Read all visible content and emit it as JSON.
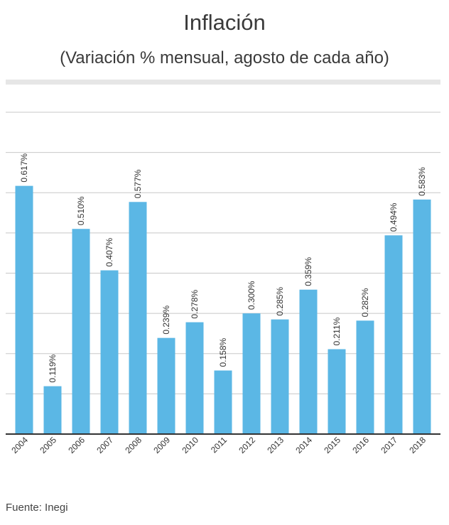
{
  "header": {
    "title": "Inflación",
    "subtitle": "(Variación % mensual, agosto de cada año)"
  },
  "footer": {
    "source": "Fuente: Inegi"
  },
  "colors": {
    "bar": "#5bb7e5",
    "grid": "#c8c8c8",
    "axis": "#333333",
    "text": "#333333"
  },
  "chart_data": {
    "type": "bar",
    "title": "Inflación",
    "subtitle": "(Variación % mensual, agosto de cada año)",
    "categories": [
      "2004",
      "2005",
      "2006",
      "2007",
      "2008",
      "2009",
      "2010",
      "2011",
      "2012",
      "2013",
      "2014",
      "2015",
      "2016",
      "2017",
      "2018"
    ],
    "values": [
      0.617,
      0.119,
      0.51,
      0.407,
      0.577,
      0.239,
      0.278,
      0.158,
      0.3,
      0.285,
      0.359,
      0.211,
      0.282,
      0.494,
      0.583
    ],
    "data_labels": [
      "0.617%",
      "0.119%",
      "0.510%",
      "0.407%",
      "0.577%",
      "0.239%",
      "0.278%",
      "0.158%",
      "0.300%",
      "0.285%",
      "0.359%",
      "0.211%",
      "0.282%",
      "0.494%",
      "0.583%"
    ],
    "ylim": [
      0,
      0.8
    ],
    "grid": true,
    "y_tick_labels_visible": false
  }
}
